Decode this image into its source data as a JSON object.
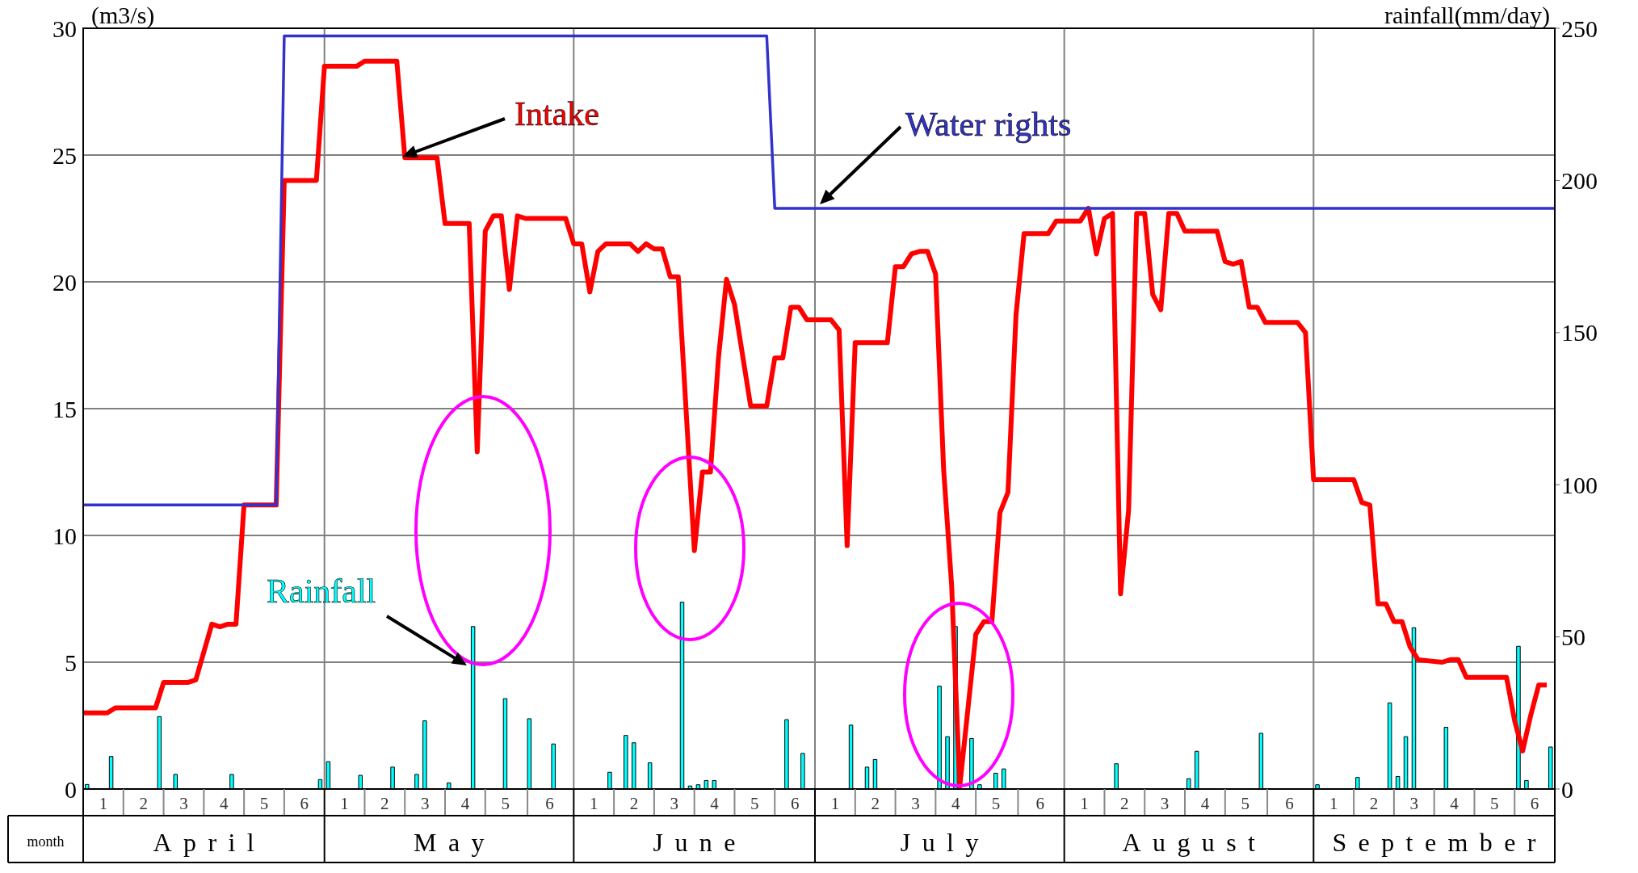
{
  "chart_data": {
    "type": "line",
    "ylabel": "(m3/s)",
    "y2label": "rainfall(mm/day)",
    "xlim": [
      "--04-01",
      "--10-01"
    ],
    "xticks": [
      {
        "value": "--04-03T12:00",
        "label": "1"
      },
      {
        "value": "--04-08T12:00",
        "label": "2"
      },
      {
        "value": "--04-13T12:00",
        "label": "3"
      },
      {
        "value": "--04-18T12:00",
        "label": "4"
      },
      {
        "value": "--04-23T12:00",
        "label": "5"
      },
      {
        "value": "--04-28T12:00",
        "label": "6"
      },
      {
        "value": "--05-01",
        "label": null
      },
      {
        "value": "--05-03T12:00",
        "label": "1"
      },
      {
        "value": "--05-08T12:00",
        "label": "2"
      },
      {
        "value": "--05-13T12:00",
        "label": "3"
      },
      {
        "value": "--05-18T12:00",
        "label": "4"
      },
      {
        "value": "--05-23T12:00",
        "label": "5"
      },
      {
        "value": "--05-29",
        "label": "6"
      },
      {
        "value": "--06-01",
        "label": null
      },
      {
        "value": "--06-03T12:00",
        "label": "1"
      },
      {
        "value": "--06-08T12:00",
        "label": "2"
      },
      {
        "value": "--06-13T12:00",
        "label": "3"
      },
      {
        "value": "--06-18T12:00",
        "label": "4"
      },
      {
        "value": "--06-23T12:00",
        "label": "5"
      },
      {
        "value": "--06-28T12:00",
        "label": "6"
      },
      {
        "value": "--07-01",
        "label": null
      },
      {
        "value": "--07-03T12:00",
        "label": "1"
      },
      {
        "value": "--07-08T12:00",
        "label": "2"
      },
      {
        "value": "--07-13T12:00",
        "label": "3"
      },
      {
        "value": "--07-18T12:00",
        "label": "4"
      },
      {
        "value": "--07-23T12:00",
        "label": "5"
      },
      {
        "value": "--07-29",
        "label": "6"
      },
      {
        "value": "--08-01",
        "label": null
      },
      {
        "value": "--08-03T12:00",
        "label": "1"
      },
      {
        "value": "--08-08T12:00",
        "label": "2"
      },
      {
        "value": "--08-13T12:00",
        "label": "3"
      },
      {
        "value": "--08-18T12:00",
        "label": "4"
      },
      {
        "value": "--08-23T12:00",
        "label": "5"
      },
      {
        "value": "--08-29",
        "label": "6"
      },
      {
        "value": "--09-01",
        "label": null
      },
      {
        "value": "--09-03T12:00",
        "label": "1"
      },
      {
        "value": "--09-08T12:00",
        "label": "2"
      },
      {
        "value": "--09-13T12:00",
        "label": "3"
      },
      {
        "value": "--09-18T12:00",
        "label": "4"
      },
      {
        "value": "--09-23T12:00",
        "label": "5"
      },
      {
        "value": "--09-28T12:00",
        "label": "6"
      }
    ],
    "ylim": [
      0,
      30
    ],
    "yticks": [
      0,
      5,
      10,
      15,
      20,
      25,
      30
    ],
    "y2lim": [
      0,
      250
    ],
    "y2ticks": [
      0,
      50,
      100,
      150,
      200,
      250
    ],
    "grid": true,
    "marker": "none",
    "line_style": "solid",
    "series": [
      {
        "name": "Intake",
        "color": "#ff0000",
        "x": [
          "--04-01",
          "--04-04",
          "--04-05",
          "--04-10",
          "--04-11",
          "--04-14",
          "--04-15",
          "--04-16",
          "--04-17",
          "--04-18",
          "--04-19",
          "--04-20",
          "--04-21",
          "--04-25",
          "--04-26",
          "--04-30",
          "--05-01",
          "--05-05",
          "--05-06",
          "--05-10",
          "--05-11",
          "--05-15",
          "--05-16",
          "--05-19",
          "--05-20",
          "--05-21",
          "--05-22",
          "--05-23",
          "--05-24",
          "--05-25",
          "--05-26",
          "--05-31",
          "--06-01",
          "--06-02",
          "--06-03",
          "--06-04",
          "--06-05",
          "--06-08",
          "--06-09",
          "--06-10",
          "--06-11",
          "--06-12",
          "--06-13",
          "--06-14",
          "--06-16",
          "--06-17",
          "--06-18",
          "--06-19",
          "--06-20",
          "--06-21",
          "--06-23",
          "--06-25",
          "--06-26",
          "--06-27",
          "--06-28",
          "--06-29",
          "--06-30",
          "--07-03",
          "--07-04",
          "--07-05",
          "--07-06",
          "--07-10",
          "--07-11",
          "--07-12",
          "--07-13",
          "--07-14",
          "--07-15",
          "--07-16",
          "--07-17",
          "--07-18",
          "--07-19",
          "--07-20",
          "--07-21",
          "--07-22",
          "--07-23",
          "--07-24",
          "--07-25",
          "--07-26",
          "--07-27",
          "--07-30",
          "--07-31",
          "--08-03",
          "--08-04",
          "--08-05",
          "--08-06",
          "--08-07",
          "--08-08",
          "--08-09",
          "--08-10",
          "--08-11",
          "--08-12",
          "--08-13",
          "--08-14",
          "--08-15",
          "--08-16",
          "--08-20",
          "--08-21",
          "--08-22",
          "--08-23",
          "--08-24",
          "--08-25",
          "--08-26",
          "--08-30",
          "--08-31",
          "--09-01",
          "--09-06",
          "--09-07",
          "--09-08",
          "--09-09",
          "--09-10",
          "--09-11",
          "--09-12",
          "--09-13",
          "--09-14",
          "--09-17",
          "--09-18",
          "--09-19",
          "--09-20",
          "--09-25",
          "--09-26",
          "--09-27",
          "--09-28",
          "--09-29",
          "--09-30"
        ],
        "values": [
          3.0,
          3.0,
          3.2,
          3.2,
          4.2,
          4.2,
          4.3,
          5.4,
          6.5,
          6.4,
          6.5,
          6.5,
          11.2,
          11.2,
          24.0,
          24.0,
          28.5,
          28.5,
          28.7,
          28.7,
          24.9,
          24.9,
          22.3,
          22.3,
          13.3,
          22.0,
          22.6,
          22.6,
          19.7,
          22.6,
          22.5,
          22.5,
          21.5,
          21.5,
          19.6,
          21.2,
          21.5,
          21.5,
          21.2,
          21.5,
          21.3,
          21.3,
          20.2,
          20.2,
          9.4,
          12.5,
          12.5,
          17.0,
          20.1,
          19.1,
          15.1,
          15.1,
          17.0,
          17.0,
          19.0,
          19.0,
          18.5,
          18.5,
          18.1,
          9.6,
          17.6,
          17.6,
          20.6,
          20.6,
          21.1,
          21.2,
          21.2,
          20.3,
          12.6,
          8.0,
          0.1,
          3.1,
          6.1,
          6.6,
          6.6,
          10.9,
          11.7,
          18.7,
          21.9,
          21.9,
          22.4,
          22.4,
          22.9,
          21.1,
          22.5,
          22.7,
          7.7,
          11.0,
          22.7,
          22.7,
          19.5,
          18.9,
          22.7,
          22.7,
          22.0,
          22.0,
          20.8,
          20.7,
          20.8,
          19.0,
          19.0,
          18.4,
          18.4,
          18.0,
          12.2,
          12.2,
          11.3,
          11.2,
          7.3,
          7.3,
          6.6,
          6.6,
          5.6,
          5.1,
          5.0,
          5.1,
          5.1,
          4.4,
          4.4,
          2.7,
          1.5,
          2.9,
          4.1,
          4.1
        ]
      },
      {
        "name": "Water rights",
        "color": "#3333cc",
        "x": [
          "--04-01",
          "--04-25",
          "--04-26",
          "--06-25",
          "--06-26",
          "--10-01"
        ],
        "values": [
          11.2,
          11.2,
          29.7,
          29.7,
          22.9,
          22.9
        ]
      },
      {
        "name": "Rainfall",
        "type": "bar",
        "axis": "y2",
        "color": "#00ffff",
        "x": [
          "--04-01T12:00",
          "--04-04T12:00",
          "--04-10T12:00",
          "--04-12T12:00",
          "--04-19T12:00",
          "--04-30T12:00",
          "--05-01T12:00",
          "--05-05T12:00",
          "--05-09T12:00",
          "--05-12T12:00",
          "--05-13T12:00",
          "--05-16T12:00",
          "--05-19T12:00",
          "--05-23T12:00",
          "--05-26T12:00",
          "--05-29T12:00",
          "--06-05T12:00",
          "--06-07T12:00",
          "--06-08T12:00",
          "--06-10T12:00",
          "--06-14T12:00",
          "--06-15T12:00",
          "--06-16T12:00",
          "--06-17T12:00",
          "--06-18T12:00",
          "--06-27T12:00",
          "--06-29T12:00",
          "--07-05T12:00",
          "--07-07T12:00",
          "--07-08T12:00",
          "--07-16T12:00",
          "--07-17T12:00",
          "--07-18T12:00",
          "--07-20T12:00",
          "--07-21T12:00",
          "--07-23T12:00",
          "--07-24T12:00",
          "--08-07T12:00",
          "--08-16T12:00",
          "--08-17T12:00",
          "--08-25T12:00",
          "--09-01T12:00",
          "--09-06T12:00",
          "--09-10T12:00",
          "--09-11T12:00",
          "--09-12T12:00",
          "--09-13T12:00",
          "--09-17T12:00",
          "--09-26T12:00",
          "--09-27T12:00",
          "--09-30T12:00"
        ],
        "values": [
          1.5,
          10.7,
          23.8,
          4.8,
          4.8,
          3.1,
          9,
          4.5,
          7.2,
          4.8,
          22.4,
          2,
          53.4,
          29.7,
          23.1,
          14.8,
          5.5,
          17.6,
          15.2,
          8.6,
          61.4,
          1,
          1.4,
          2.8,
          2.8,
          22.8,
          11.7,
          21,
          7.2,
          9.7,
          33.8,
          17.2,
          53.4,
          16.6,
          1.4,
          5.2,
          6.6,
          8.3,
          3.4,
          12.4,
          18.3,
          1.4,
          3.8,
          28.3,
          4.1,
          17.2,
          53,
          20.3,
          46.9,
          2.8,
          13.8
        ]
      }
    ],
    "annotations": [
      "month",
      "April",
      "May",
      "June",
      "July",
      "August",
      "September"
    ]
  }
}
